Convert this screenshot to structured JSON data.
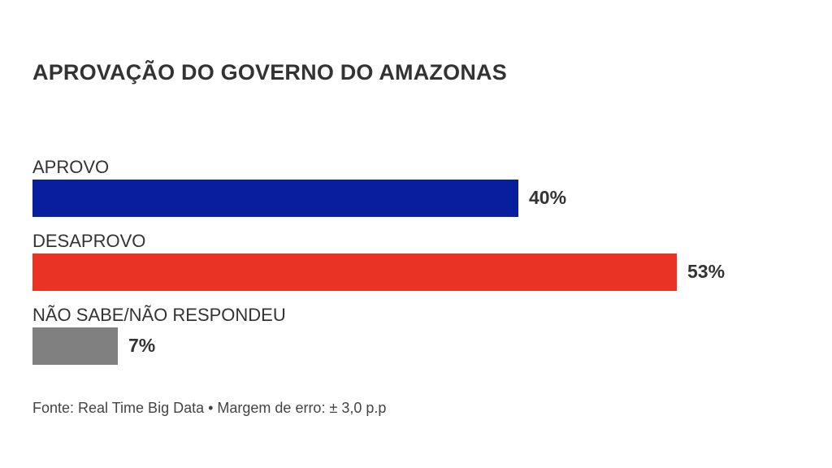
{
  "chart_data": {
    "type": "bar",
    "orientation": "horizontal",
    "title": "APROVAÇÃO DO GOVERNO DO AMAZONAS",
    "categories": [
      "APROVO",
      "DESAPROVO",
      "NÃO SABE/NÃO RESPONDEU"
    ],
    "values": [
      40,
      53,
      7
    ],
    "value_labels": [
      "40%",
      "53%",
      "7%"
    ],
    "colors": [
      "#081e9c",
      "#e93324",
      "#808080"
    ],
    "unit": "%",
    "xlim": [
      0,
      53
    ],
    "grid": false,
    "legend": "none",
    "source": "Fonte: Real Time Big Data • Margem de erro: ± 3,0 p.p"
  }
}
